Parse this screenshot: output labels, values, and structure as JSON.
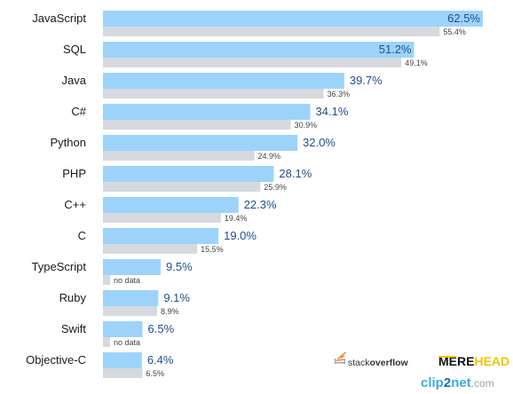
{
  "chart_data": {
    "type": "bar",
    "orientation": "horizontal",
    "categories": [
      "JavaScript",
      "SQL",
      "Java",
      "C#",
      "Python",
      "PHP",
      "C++",
      "C",
      "TypeScript",
      "Ruby",
      "Swift",
      "Objective-C"
    ],
    "series": [
      {
        "color": "#9dd3fb",
        "values": [
          62.5,
          51.2,
          39.7,
          34.1,
          32.0,
          28.1,
          22.3,
          19.0,
          9.5,
          9.1,
          6.5,
          6.4
        ],
        "labels": [
          "62.5%",
          "51.2%",
          "39.7%",
          "34.1%",
          "32.0%",
          "28.1%",
          "22.3%",
          "19.0%",
          "9.5%",
          "9.1%",
          "6.5%",
          "6.4%"
        ]
      },
      {
        "color": "#d6d9de",
        "values": [
          55.4,
          49.1,
          36.3,
          30.9,
          24.9,
          25.9,
          19.4,
          15.5,
          null,
          8.9,
          null,
          6.5
        ],
        "labels": [
          "55.4%",
          "49.1%",
          "36.3%",
          "30.9%",
          "24.9%",
          "25.9%",
          "19.4%",
          "15.5%",
          "no data",
          "8.9%",
          "no data",
          "6.5%"
        ]
      }
    ],
    "xlim": [
      0,
      62.5
    ],
    "grid": false,
    "title": "",
    "xlabel": "",
    "ylabel": ""
  },
  "logos": {
    "stackoverflow": {
      "prefix": "stack",
      "suffix": "overflow"
    },
    "merehead": {
      "prefix": "MERE",
      "suffix": "HEAD"
    },
    "clip2net": {
      "prefix": "clip",
      "mid": "2",
      "suffix": "net",
      "tld": ".com"
    }
  }
}
